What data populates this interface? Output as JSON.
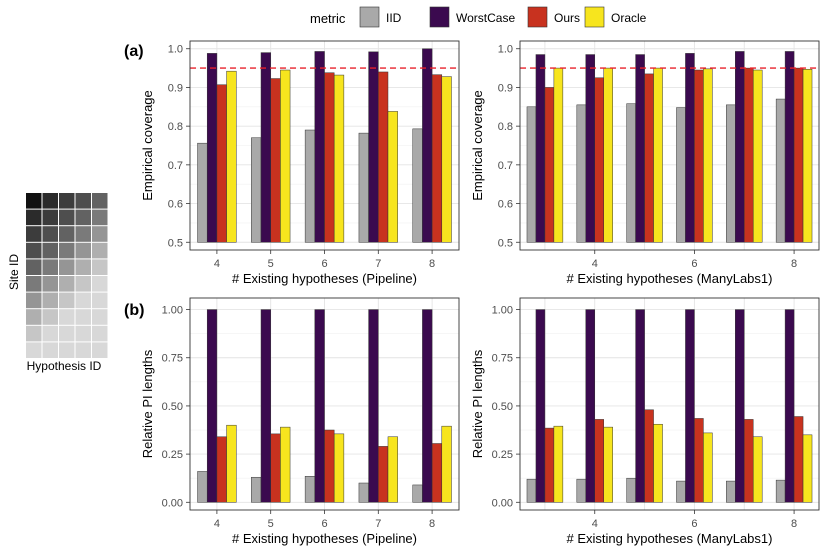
{
  "legend": {
    "title": "metric",
    "entries": [
      {
        "name": "IID",
        "color": "#a9a9a9"
      },
      {
        "name": "WorstCase",
        "color": "#3b0a4f"
      },
      {
        "name": "Ours",
        "color": "#c8321f"
      },
      {
        "name": "Oracle",
        "color": "#f7e51e"
      }
    ]
  },
  "panel_labels": {
    "a": "(a)",
    "b": "(b)"
  },
  "heatmap_inset": {
    "xlabel": "Hypothesis ID",
    "ylabel": "Site ID",
    "rows": 10,
    "cols": 5,
    "row_colors": [
      "#111111",
      "#2b2b2b",
      "#3c3c3c",
      "#4e4e4e",
      "#626262",
      "#7a7a7a",
      "#959595",
      "#afafaf",
      "#c6c6c6",
      "#d8d8d8"
    ]
  },
  "chart_data": [
    {
      "type": "bar",
      "id": "a-pipeline",
      "xlabel": "# Existing hypotheses (Pipeline)",
      "ylabel": "Empirical coverage",
      "categories": [
        4,
        5,
        6,
        7,
        8
      ],
      "x_ticks": [
        "4",
        "5",
        "6",
        "7",
        "8"
      ],
      "ylim": [
        0.48,
        1.02
      ],
      "y_ticks": [
        "0.5",
        "0.6",
        "0.7",
        "0.8",
        "0.9",
        "1.0"
      ],
      "reference_line": 0.95,
      "series": [
        {
          "name": "IID",
          "values": [
            0.756,
            0.77,
            0.79,
            0.782,
            0.793
          ]
        },
        {
          "name": "WorstCase",
          "values": [
            0.988,
            0.99,
            0.993,
            0.992,
            1.0
          ]
        },
        {
          "name": "Ours",
          "values": [
            0.907,
            0.923,
            0.938,
            0.94,
            0.933
          ]
        },
        {
          "name": "Oracle",
          "values": [
            0.942,
            0.945,
            0.932,
            0.838,
            0.928
          ]
        }
      ]
    },
    {
      "type": "bar",
      "id": "a-manylabs",
      "xlabel": "# Existing hypotheses (ManyLabs1)",
      "ylabel": "Empirical coverage",
      "categories": [
        3,
        4,
        5,
        6,
        7,
        8
      ],
      "x_ticks": [
        "4",
        "6",
        "8"
      ],
      "ylim": [
        0.48,
        1.02
      ],
      "y_ticks": [
        "0.5",
        "0.6",
        "0.7",
        "0.8",
        "0.9",
        "1.0"
      ],
      "reference_line": 0.95,
      "series": [
        {
          "name": "IID",
          "values": [
            0.85,
            0.855,
            0.858,
            0.848,
            0.855,
            0.87
          ]
        },
        {
          "name": "WorstCase",
          "values": [
            0.985,
            0.985,
            0.985,
            0.988,
            0.993,
            0.993
          ]
        },
        {
          "name": "Ours",
          "values": [
            0.9,
            0.925,
            0.935,
            0.945,
            0.95,
            0.95
          ]
        },
        {
          "name": "Oracle",
          "values": [
            0.95,
            0.95,
            0.95,
            0.948,
            0.945,
            0.947
          ]
        }
      ]
    },
    {
      "type": "bar",
      "id": "b-pipeline",
      "xlabel": "# Existing hypotheses (Pipeline)",
      "ylabel": "Relative PI lengths",
      "categories": [
        4,
        5,
        6,
        7,
        8
      ],
      "x_ticks": [
        "4",
        "5",
        "6",
        "7",
        "8"
      ],
      "ylim": [
        -0.04,
        1.06
      ],
      "y_ticks": [
        "0.00",
        "0.25",
        "0.50",
        "0.75",
        "1.00"
      ],
      "series": [
        {
          "name": "IID",
          "values": [
            0.16,
            0.13,
            0.135,
            0.1,
            0.09
          ]
        },
        {
          "name": "WorstCase",
          "values": [
            1.0,
            1.0,
            1.0,
            1.0,
            1.0
          ]
        },
        {
          "name": "Ours",
          "values": [
            0.34,
            0.355,
            0.375,
            0.29,
            0.305
          ]
        },
        {
          "name": "Oracle",
          "values": [
            0.4,
            0.39,
            0.355,
            0.34,
            0.395
          ]
        }
      ]
    },
    {
      "type": "bar",
      "id": "b-manylabs",
      "xlabel": "# Existing hypotheses (ManyLabs1)",
      "ylabel": "Relative PI lengths",
      "categories": [
        3,
        4,
        5,
        6,
        7,
        8
      ],
      "x_ticks": [
        "4",
        "6",
        "8"
      ],
      "ylim": [
        -0.04,
        1.06
      ],
      "y_ticks": [
        "0.00",
        "0.25",
        "0.50",
        "0.75",
        "1.00"
      ],
      "series": [
        {
          "name": "IID",
          "values": [
            0.12,
            0.12,
            0.125,
            0.11,
            0.11,
            0.115
          ]
        },
        {
          "name": "WorstCase",
          "values": [
            1.0,
            1.0,
            1.0,
            1.0,
            1.0,
            1.0
          ]
        },
        {
          "name": "Ours",
          "values": [
            0.385,
            0.43,
            0.48,
            0.435,
            0.43,
            0.445
          ]
        },
        {
          "name": "Oracle",
          "values": [
            0.395,
            0.39,
            0.405,
            0.36,
            0.34,
            0.35
          ]
        }
      ]
    }
  ]
}
